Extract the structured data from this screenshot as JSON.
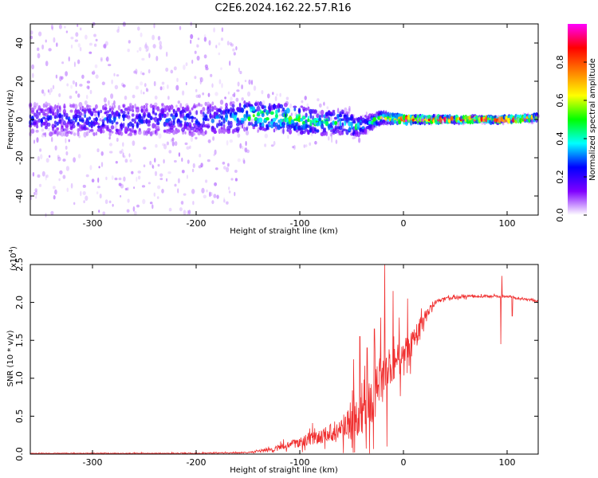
{
  "title": "C2E6.2024.162.22.57.R16",
  "colors": {
    "snr_line": "#f03030",
    "frame": "#000000",
    "background": "#ffffff"
  },
  "chart_data": [
    {
      "type": "heatmap",
      "name": "spectrogram",
      "xlabel": "Height of straight line (km)",
      "ylabel": "Frequency (Hz)",
      "xlim": [
        -360,
        130
      ],
      "ylim": [
        -50,
        50
      ],
      "xticks": [
        -300,
        -200,
        -100,
        0,
        100
      ],
      "xtick_labels": [
        "-300",
        "-200",
        "-100",
        "0",
        "100"
      ],
      "yticks": [
        -40,
        -20,
        0,
        20,
        40
      ],
      "ytick_labels": [
        "-40",
        "-20",
        "0",
        "20",
        "40"
      ],
      "colorbar": {
        "label": "Normalized spectral amplitude",
        "range": [
          0,
          1
        ],
        "ticks": [
          0.0,
          0.2,
          0.4,
          0.6,
          0.8
        ],
        "tick_labels": [
          "0.0",
          "0.2",
          "0.4",
          "0.6",
          "0.8"
        ],
        "colormap": [
          "#ffffff",
          "#7f00ff",
          "#0000ff",
          "#00ffff",
          "#00ff00",
          "#ffff00",
          "#ff7f00",
          "#ff0000",
          "#ff00ff"
        ]
      },
      "band_profile": {
        "x": [
          -360,
          -300,
          -200,
          -165,
          -150,
          -120,
          -100,
          -80,
          -60,
          -45,
          -35,
          -20,
          0,
          50,
          100,
          130
        ],
        "center_hz": [
          0,
          0,
          0,
          1,
          2,
          1,
          0,
          -2,
          -1,
          -4,
          -2,
          1,
          0,
          0,
          0,
          1
        ],
        "half_width_hz": [
          8,
          8,
          8,
          8,
          7,
          7,
          7,
          6,
          6,
          5,
          4,
          3,
          2,
          1.5,
          1.5,
          1.5
        ],
        "peak_amplitude": [
          0.25,
          0.3,
          0.28,
          0.35,
          0.55,
          0.55,
          0.5,
          0.5,
          0.45,
          0.45,
          0.4,
          0.6,
          0.95,
          0.95,
          0.95,
          0.9
        ],
        "noise_spread_hz": [
          50,
          50,
          50,
          45,
          20,
          15,
          15,
          12,
          10,
          8,
          5,
          3,
          2,
          2,
          2,
          2
        ]
      }
    },
    {
      "type": "line",
      "name": "snr",
      "xlabel": "Height of straight line (km)",
      "ylabel": "SNR (10 * v/v)",
      "multiplier_prefix": "(x10",
      "multiplier_exp": "4",
      "multiplier_suffix": ")",
      "xlim": [
        -360,
        130
      ],
      "ylim": [
        0,
        2.5
      ],
      "xticks": [
        -300,
        -200,
        -100,
        0,
        100
      ],
      "xtick_labels": [
        "-300",
        "-200",
        "-100",
        "0",
        "100"
      ],
      "yticks": [
        0.0,
        0.5,
        1.0,
        1.5,
        2.0,
        2.5
      ],
      "ytick_labels": [
        "0.0",
        "0.5",
        "1.0",
        "1.5",
        "2.0",
        "2.5"
      ],
      "baseline": {
        "x": [
          -360,
          -200,
          -150,
          -130,
          -110,
          -90,
          -70,
          -55,
          -45,
          -35,
          -25,
          -15,
          0,
          10,
          20,
          30,
          40,
          60,
          80,
          100,
          110,
          130
        ],
        "y": [
          0.01,
          0.01,
          0.02,
          0.05,
          0.12,
          0.2,
          0.28,
          0.35,
          0.45,
          0.6,
          0.85,
          1.1,
          1.3,
          1.5,
          1.8,
          2.0,
          2.05,
          2.08,
          2.08,
          2.08,
          2.05,
          2.02
        ]
      },
      "noise": {
        "x": [
          -360,
          -150,
          -120,
          -90,
          -60,
          -45,
          -30,
          -15,
          0,
          20,
          30,
          130
        ],
        "amplitude": [
          0.005,
          0.01,
          0.05,
          0.12,
          0.2,
          0.35,
          0.45,
          0.4,
          0.3,
          0.15,
          0.03,
          0.02
        ]
      },
      "spikes": [
        {
          "x": -48,
          "y": 1.25
        },
        {
          "x": -42,
          "y": 1.55
        },
        {
          "x": -35,
          "y": 1.4
        },
        {
          "x": -28,
          "y": 1.65
        },
        {
          "x": -22,
          "y": 1.8
        },
        {
          "x": -18,
          "y": 2.5
        },
        {
          "x": -16,
          "y": 0.1
        },
        {
          "x": -10,
          "y": 2.15
        },
        {
          "x": -4,
          "y": 1.8
        },
        {
          "x": 4,
          "y": 2.05
        },
        {
          "x": 10,
          "y": 1.5
        },
        {
          "x": 95,
          "y": 2.35
        },
        {
          "x": 94,
          "y": 1.45
        },
        {
          "x": 105,
          "y": 1.82
        }
      ]
    }
  ]
}
